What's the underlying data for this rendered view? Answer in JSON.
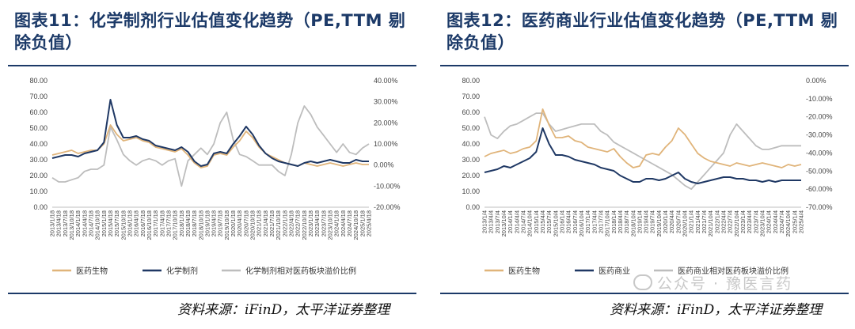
{
  "charts": [
    {
      "title": "图表11：化学制剂行业估值变化趋势（PE,TTM 剔除负值）",
      "source": "资料来源：iFinD，太平洋证券整理",
      "chart_data": {
        "type": "line",
        "x": [
          "2013/1/18",
          "2013/4/18",
          "2013/7/18",
          "2013/10/18",
          "2014/1/18",
          "2014/4/18",
          "2014/7/18",
          "2014/10/18",
          "2015/1/18",
          "2015/4/18",
          "2015/7/18",
          "2015/10/18",
          "2016/1/18",
          "2016/4/18",
          "2016/7/18",
          "2016/10/18",
          "2017/1/18",
          "2017/4/18",
          "2017/7/18",
          "2017/10/18",
          "2018/1/18",
          "2018/4/18",
          "2018/7/18",
          "2018/10/18",
          "2019/1/18",
          "2019/4/18",
          "2019/7/18",
          "2019/10/18",
          "2020/1/18",
          "2020/4/18",
          "2020/7/18",
          "2020/10/18",
          "2021/1/18",
          "2021/4/18",
          "2021/7/18",
          "2021/10/18",
          "2022/1/18",
          "2022/4/18",
          "2022/7/18",
          "2022/10/18",
          "2023/1/18",
          "2023/4/18",
          "2023/7/18",
          "2023/10/18",
          "2024/1/18",
          "2024/4/18",
          "2024/7/18",
          "2024/10/18",
          "2025/1/18",
          "2025/4/18"
        ],
        "y_left": {
          "min": 0,
          "max": 80,
          "step": 10,
          "ticks": [
            "0.00",
            "10.00",
            "20.00",
            "30.00",
            "40.00",
            "50.00",
            "60.00",
            "70.00",
            "80.00"
          ]
        },
        "y_right": {
          "min": -20,
          "max": 40,
          "step": 10,
          "ticks": [
            "-20.00%",
            "-10.00%",
            "0.00%",
            "10.00%",
            "20.00%",
            "30.00%",
            "40.00%"
          ]
        },
        "series": [
          {
            "name": "医药生物",
            "axis": "left",
            "color": "#e0b47a",
            "values": [
              33,
              34,
              35,
              36,
              34,
              35,
              36,
              36,
              40,
              52,
              46,
              42,
              43,
              44,
              42,
              41,
              38,
              37,
              36,
              35,
              37,
              33,
              28,
              25,
              26,
              33,
              34,
              33,
              38,
              42,
              48,
              44,
              38,
              34,
              32,
              30,
              28,
              27,
              26,
              28,
              27,
              26,
              27,
              28,
              27,
              26,
              27,
              28,
              27,
              27
            ]
          },
          {
            "name": "化学制剂",
            "axis": "left",
            "color": "#1f3864",
            "values": [
              31,
              32,
              33,
              33,
              32,
              34,
              35,
              36,
              41,
              68,
              52,
              44,
              44,
              45,
              43,
              42,
              39,
              38,
              37,
              36,
              38,
              35,
              29,
              26,
              27,
              34,
              35,
              34,
              40,
              45,
              51,
              46,
              39,
              34,
              31,
              29,
              28,
              27,
              26,
              28,
              29,
              28,
              29,
              30,
              29,
              28,
              28,
              30,
              29,
              29
            ]
          },
          {
            "name": "化学制剂相对医药板块溢价比例",
            "axis": "right",
            "color": "#bdbdbd",
            "values": [
              -6,
              -8,
              -8,
              -7,
              -6,
              -3,
              -2,
              -2,
              0,
              18,
              12,
              5,
              2,
              0,
              2,
              3,
              2,
              0,
              2,
              3,
              -10,
              2,
              5,
              8,
              5,
              10,
              20,
              25,
              12,
              5,
              4,
              2,
              0,
              0,
              0,
              -3,
              -5,
              5,
              20,
              28,
              24,
              18,
              14,
              10,
              6,
              10,
              6,
              5,
              8,
              10
            ]
          }
        ],
        "legend_position": "bottom",
        "grid": false
      }
    },
    {
      "title": "图表12：医药商业行业估值变化趋势（PE,TTM 剔除负值）",
      "source": "资料来源：iFinD，太平洋证券整理",
      "chart_data": {
        "type": "line",
        "x": [
          "2013/1/4",
          "2013/4/4",
          "2013/7/4",
          "2013/10/4",
          "2014/1/4",
          "2014/4/4",
          "2014/7/4",
          "2014/10/4",
          "2015/1/4",
          "2015/4/4",
          "2015/7/4",
          "2015/10/4",
          "2016/1/4",
          "2016/4/4",
          "2016/7/4",
          "2016/10/4",
          "2017/1/4",
          "2017/4/4",
          "2017/7/4",
          "2017/10/4",
          "2018/1/4",
          "2018/4/4",
          "2018/7/4",
          "2018/10/4",
          "2019/1/4",
          "2019/4/4",
          "2019/7/4",
          "2019/10/4",
          "2020/1/4",
          "2020/4/4",
          "2020/7/4",
          "2020/10/4",
          "2021/1/4",
          "2021/4/4",
          "2021/7/4",
          "2021/10/4",
          "2022/1/4",
          "2022/4/4",
          "2022/7/4",
          "2022/10/4",
          "2023/1/4",
          "2023/4/4",
          "2023/7/4",
          "2023/10/4",
          "2024/1/4",
          "2024/4/4",
          "2024/7/4",
          "2024/10/4",
          "2025/1/4",
          "2025/4/4"
        ],
        "y_left": {
          "min": 0,
          "max": 80,
          "step": 10,
          "ticks": [
            "0.00",
            "10.00",
            "20.00",
            "30.00",
            "40.00",
            "50.00",
            "60.00",
            "70.00",
            "80.00"
          ]
        },
        "y_right": {
          "min": -70,
          "max": 0,
          "step": 10,
          "ticks": [
            "-70.00%",
            "-60.00%",
            "-50.00%",
            "-40.00%",
            "-30.00%",
            "-20.00%",
            "-10.00%",
            "0.00%"
          ]
        },
        "series": [
          {
            "name": "医药生物",
            "axis": "left",
            "color": "#e0b47a",
            "values": [
              32,
              34,
              35,
              36,
              34,
              35,
              37,
              38,
              42,
              62,
              52,
              44,
              44,
              45,
              42,
              41,
              38,
              37,
              36,
              35,
              37,
              32,
              28,
              25,
              26,
              33,
              34,
              33,
              38,
              42,
              50,
              46,
              40,
              34,
              31,
              29,
              28,
              27,
              26,
              28,
              27,
              26,
              27,
              28,
              27,
              26,
              25,
              27,
              26,
              27
            ]
          },
          {
            "name": "医药商业",
            "axis": "left",
            "color": "#1f3864",
            "values": [
              22,
              23,
              24,
              26,
              25,
              27,
              29,
              31,
              35,
              50,
              40,
              33,
              33,
              32,
              30,
              29,
              28,
              27,
              25,
              24,
              23,
              20,
              18,
              16,
              16,
              18,
              18,
              17,
              18,
              20,
              22,
              18,
              16,
              15,
              16,
              17,
              18,
              19,
              19,
              18,
              18,
              17,
              17,
              16,
              17,
              16,
              17,
              17,
              17,
              17
            ]
          },
          {
            "name": "医药商业相对医药板块溢价比例",
            "axis": "right",
            "color": "#bdbdbd",
            "values": [
              -20,
              -30,
              -32,
              -28,
              -25,
              -24,
              -22,
              -20,
              -18,
              -18,
              -24,
              -28,
              -27,
              -26,
              -25,
              -24,
              -24,
              -24,
              -28,
              -30,
              -34,
              -36,
              -38,
              -40,
              -42,
              -44,
              -46,
              -48,
              -50,
              -52,
              -55,
              -58,
              -60,
              -56,
              -52,
              -48,
              -44,
              -40,
              -30,
              -24,
              -28,
              -32,
              -36,
              -38,
              -38,
              -37,
              -36,
              -36,
              -36,
              -36
            ]
          }
        ],
        "legend_position": "bottom",
        "grid": false
      }
    }
  ],
  "watermark": "公众号 · 豫医言药"
}
